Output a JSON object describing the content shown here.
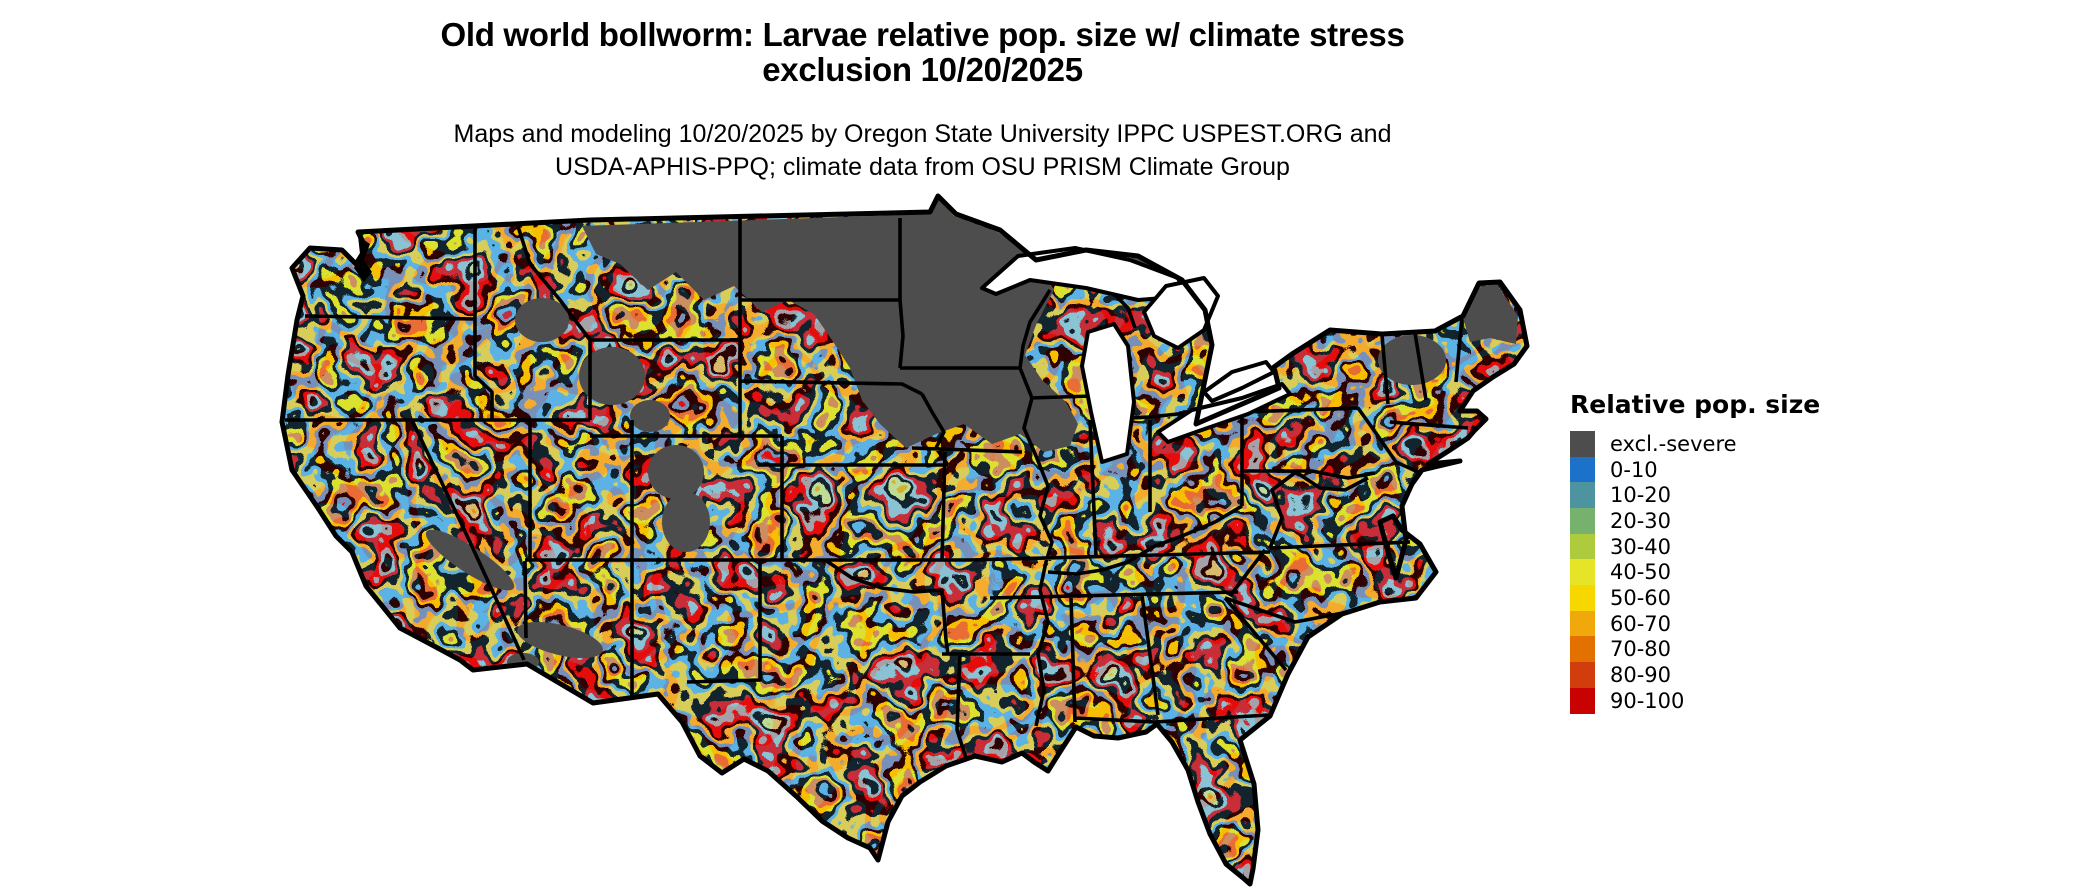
{
  "title": {
    "line1": "Old world bollworm: Larvae relative pop. size w/ climate stress",
    "line2": "exclusion 10/20/2025"
  },
  "subtitle": {
    "line1": "Maps and modeling 10/20/2025 by Oregon State University IPPC USPEST.ORG and",
    "line2": "USDA-APHIS-PPQ; climate data from OSU PRISM Climate Group"
  },
  "map": {
    "region": "Continental United States",
    "kind": "pixelated raster risk map with state borders",
    "excluded_region_color": "#4D4D4D",
    "water_color": "#FFFFFF",
    "border_color": "#000000"
  },
  "legend": {
    "title": "Relative pop. size",
    "items": [
      {
        "label": "excl.-severe",
        "color": "#4D4D4D"
      },
      {
        "label": "0-10",
        "color": "#1B72C8"
      },
      {
        "label": "10-20",
        "color": "#4E93A0"
      },
      {
        "label": "20-30",
        "color": "#77B16E"
      },
      {
        "label": "30-40",
        "color": "#AECB3E"
      },
      {
        "label": "40-50",
        "color": "#E5E426"
      },
      {
        "label": "50-60",
        "color": "#F6D800"
      },
      {
        "label": "60-70",
        "color": "#F0A80A"
      },
      {
        "label": "70-80",
        "color": "#E37100"
      },
      {
        "label": "80-90",
        "color": "#D23D0D"
      },
      {
        "label": "90-100",
        "color": "#C80101"
      }
    ]
  }
}
